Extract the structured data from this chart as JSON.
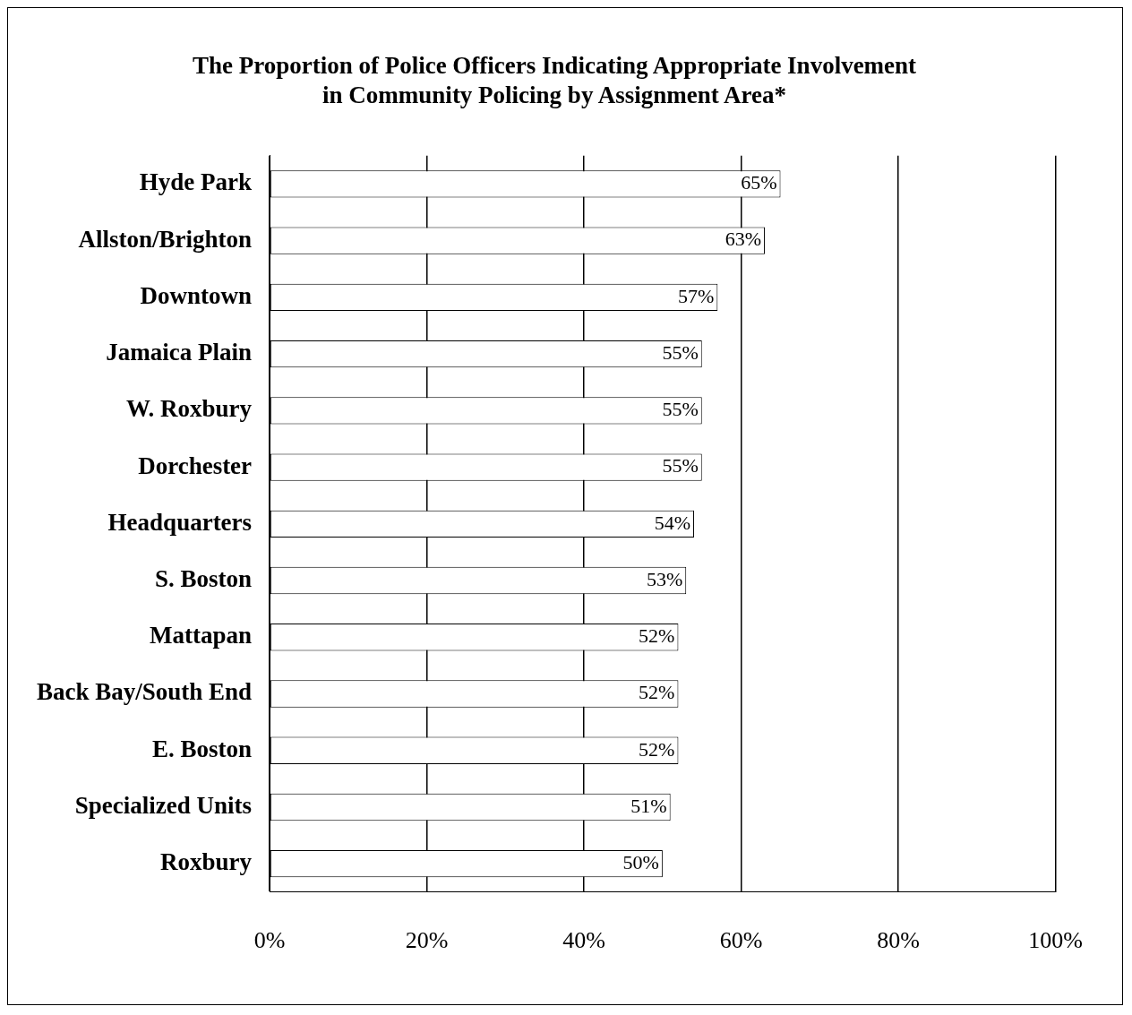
{
  "chart_data": {
    "type": "bar",
    "orientation": "horizontal",
    "title": "The Proportion of Police Officers Indicating Appropriate Involvement\nin Community Policing by Assignment Area*",
    "categories": [
      "Hyde Park",
      "Allston/Brighton",
      "Downtown",
      "Jamaica Plain",
      "W. Roxbury",
      "Dorchester",
      "Headquarters",
      "S. Boston",
      "Mattapan",
      "Back Bay/South End",
      "E. Boston",
      "Specialized Units",
      "Roxbury"
    ],
    "values": [
      65,
      63,
      57,
      55,
      55,
      55,
      54,
      53,
      52,
      52,
      52,
      51,
      50
    ],
    "value_labels": [
      "65%",
      "63%",
      "57%",
      "55%",
      "55%",
      "55%",
      "54%",
      "53%",
      "52%",
      "52%",
      "52%",
      "51%",
      "50%"
    ],
    "color": "#ffffff",
    "xlim": [
      0,
      100
    ],
    "xticks": [
      {
        "value": 0,
        "label": "0%"
      },
      {
        "value": 20,
        "label": "20%"
      },
      {
        "value": 40,
        "label": "40%"
      },
      {
        "value": 60,
        "label": "60%"
      },
      {
        "value": 80,
        "label": "80%"
      },
      {
        "value": 100,
        "label": "100%"
      }
    ],
    "grid": "x",
    "legend": false
  }
}
